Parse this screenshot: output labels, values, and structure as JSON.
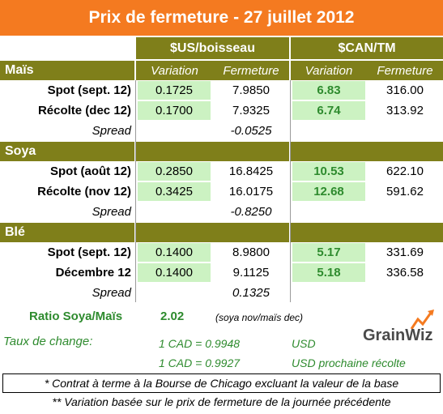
{
  "title": "Prix de fermeture - 27 juillet 2012",
  "units": {
    "usd": "$US/boisseau",
    "cad": "$CAN/TM"
  },
  "subheaders": {
    "variation": "Variation",
    "fermeture": "Fermeture"
  },
  "sections": [
    {
      "name": "Maïs",
      "rows": [
        {
          "label": "Spot (sept. 12)",
          "usd_var": "0.1725",
          "usd_close": "7.9850",
          "cad_var": "6.83",
          "cad_close": "316.00"
        },
        {
          "label": "Récolte (dec 12)",
          "usd_var": "0.1700",
          "usd_close": "7.9325",
          "cad_var": "6.74",
          "cad_close": "313.92"
        }
      ],
      "spread": {
        "label": "Spread",
        "value": "-0.0525"
      }
    },
    {
      "name": "Soya",
      "rows": [
        {
          "label": "Spot (août 12)",
          "usd_var": "0.2850",
          "usd_close": "16.8425",
          "cad_var": "10.53",
          "cad_close": "622.10"
        },
        {
          "label": "Récolte (nov 12)",
          "usd_var": "0.3425",
          "usd_close": "16.0175",
          "cad_var": "12.68",
          "cad_close": "591.62"
        }
      ],
      "spread": {
        "label": "Spread",
        "value": "-0.8250"
      }
    },
    {
      "name": "Blé",
      "rows": [
        {
          "label": "Spot (sept. 12)",
          "usd_var": "0.1400",
          "usd_close": "8.9800",
          "cad_var": "5.17",
          "cad_close": "331.69"
        },
        {
          "label": "Décembre 12",
          "usd_var": "0.1400",
          "usd_close": "9.1125",
          "cad_var": "5.18",
          "cad_close": "336.58"
        }
      ],
      "spread": {
        "label": "Spread",
        "value": "0.1325"
      }
    }
  ],
  "ratio": {
    "label": "Ratio Soya/Maïs",
    "value": "2.02",
    "note": "(soya nov/maïs dec)"
  },
  "exchange": {
    "label": "Taux de change:",
    "rate1": "1 CAD =  0.9948",
    "cur1": "USD",
    "rate2": "1 CAD =  0.9927",
    "cur2": "USD prochaine récolte"
  },
  "logo": {
    "text": "GrainWiz"
  },
  "notes": {
    "note1": "* Contrat à terme à la Bourse de Chicago excluant la valeur de la base",
    "note2": "** Variation basée sur le prix de fermeture de la journée précédente"
  }
}
